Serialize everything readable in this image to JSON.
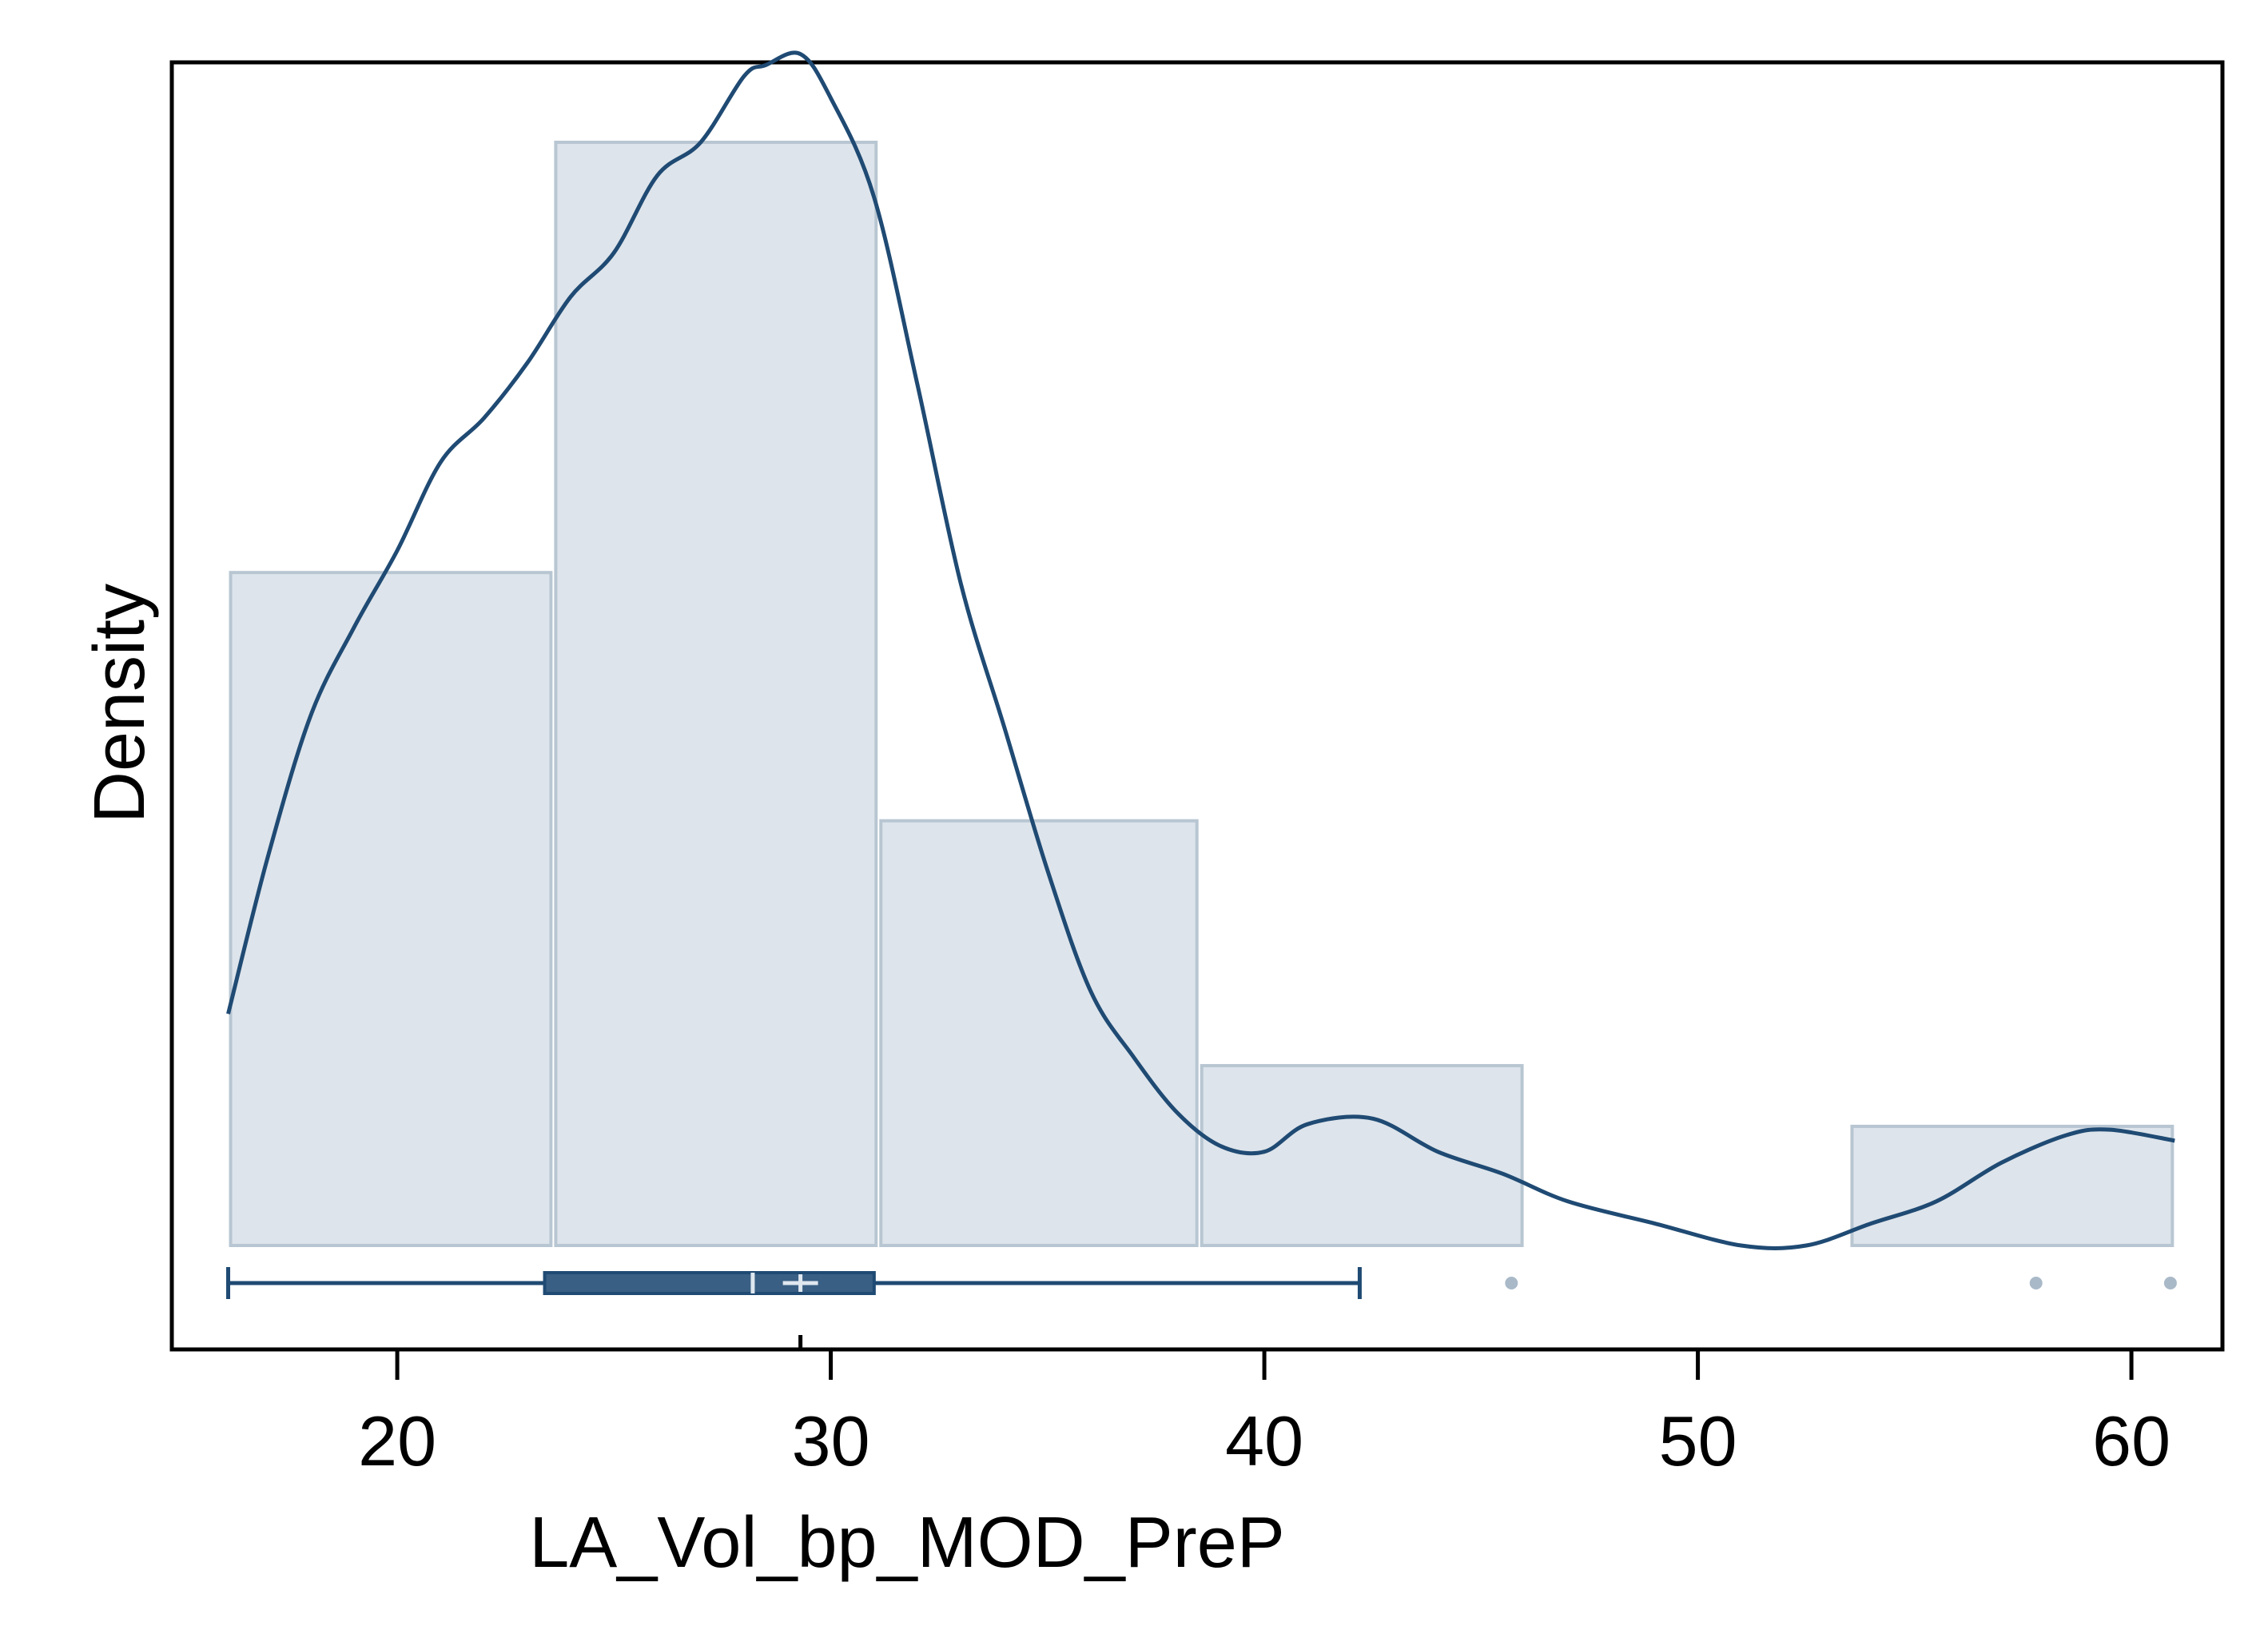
{
  "chart_data": {
    "type": "histogram",
    "title": "",
    "xlabel": "LA_Vol_bp_MOD_PreP",
    "ylabel": "Density",
    "xlim": [
      14.8,
      62.1
    ],
    "ylim": [
      0,
      1.17
    ],
    "xticks": [
      20,
      30,
      40,
      50,
      60
    ],
    "grid": false,
    "legend": "none",
    "colors": {
      "bar_fill": "#dde4eb",
      "bar_stroke": "#b8c6d2",
      "curve": "#1f4a73",
      "box": "#3a5f84",
      "outlier": "#a9b9c8",
      "axis": "#000000"
    },
    "histogram": {
      "bin_edges": [
        16.1,
        23.6,
        31.1,
        38.5,
        46.0,
        53.5,
        61.0
      ],
      "density": [
        0.61,
        1.0,
        0.385,
        0.163,
        0.0,
        0.108
      ]
    },
    "kde": {
      "x": [
        16.1,
        17.0,
        18.0,
        19.0,
        20.0,
        21.0,
        22.0,
        23.0,
        24.0,
        25.0,
        26.0,
        27.0,
        28.0,
        28.5,
        29.3,
        30.0,
        31.0,
        32.0,
        33.0,
        34.0,
        35.0,
        36.0,
        37.0,
        38.0,
        39.0,
        40.0,
        41.0,
        42.5,
        44.0,
        45.5,
        47.0,
        49.0,
        51.0,
        52.5,
        54.0,
        55.5,
        57.0,
        58.5,
        59.5,
        61.0
      ],
      "y": [
        0.21,
        0.35,
        0.48,
        0.56,
        0.63,
        0.71,
        0.75,
        0.8,
        0.86,
        0.9,
        0.97,
        1.0,
        1.06,
        1.07,
        1.08,
        1.04,
        0.95,
        0.78,
        0.6,
        0.47,
        0.34,
        0.23,
        0.17,
        0.12,
        0.09,
        0.085,
        0.11,
        0.115,
        0.085,
        0.065,
        0.04,
        0.02,
        0.0,
        0.0,
        0.02,
        0.04,
        0.075,
        0.1,
        0.105,
        0.095
      ]
    },
    "boxplot": {
      "whisker_low": 16.1,
      "q1": 23.4,
      "median": 28.2,
      "mean": 29.3,
      "q3": 31.0,
      "whisker_high": 42.2,
      "outliers": [
        45.7,
        57.8,
        60.9
      ]
    }
  }
}
